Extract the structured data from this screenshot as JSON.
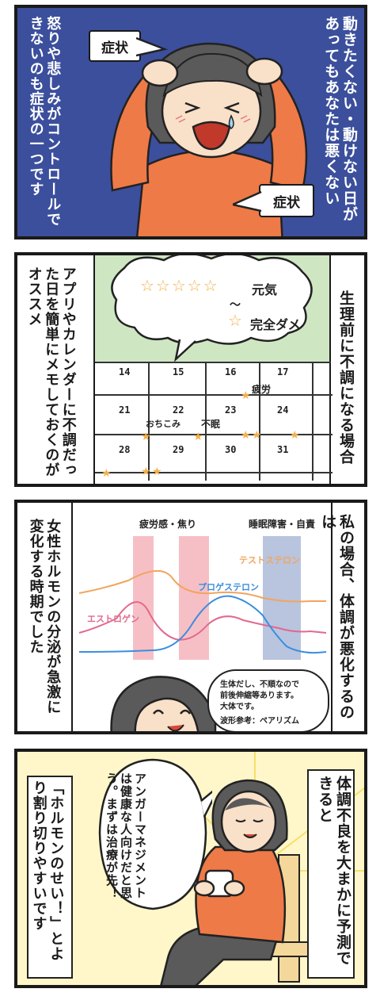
{
  "colors": {
    "panel1_bg": "#3b4f9c",
    "shirt": "#ee7a47",
    "hair": "#5a5a5a",
    "skin": "#f9e0c8",
    "calendar_header": "#cfe6c3",
    "pink_band": "#f6bfc6",
    "blue_band": "#b9c4de",
    "estrogen": "#e06a8e",
    "progesterone": "#3a8ede",
    "testosterone": "#f2a55d",
    "panel4_bg": "#fff7c9",
    "chair": "#f4d79a"
  },
  "panel1": {
    "right_text": "動きたくない・動けない日があってもあなたは悪くない",
    "left_text": "怒りや悲しみがコントロールできないのも症状の一つです",
    "bubble_top": "症状",
    "bubble_bottom": "症状"
  },
  "panel2": {
    "right_text": "生理前に不調になる場合",
    "left_text": "アプリやカレンダーに不調だった日を簡単にメモしておくのがオススメ",
    "thought_stars_label": "元気",
    "thought_tilde": "～",
    "thought_one_star_label": "完全ダメ",
    "dates": [
      "14",
      "15",
      "16",
      "17",
      "21",
      "22",
      "23",
      "24",
      "28",
      "29",
      "30",
      "31"
    ],
    "memo_fatigue": "疲労",
    "memo_down": "おちこみ",
    "memo_insomnia": "不眠"
  },
  "panel3": {
    "right_text": "私の場合、体調が悪化するのは",
    "left_text": "女性ホルモンの分泌が急激に変化する時期でした",
    "band_label_1": "疲労感・焦り",
    "band_label_2": "睡眠障害・自責",
    "series_testosterone": "テストステロン",
    "series_progesterone": "プロゲステロン",
    "series_estrogen": "エストロゲン",
    "note_line1": "生体だし、不順なので",
    "note_line2": "前後伸縮等あります。",
    "note_line3": "大体です。",
    "note_source": "波形参考：ペアリズム"
  },
  "panel4": {
    "right_text": "体調不良を大まかに予測できると",
    "left_text": "「ホルモンのせい！」とより割り切りやすいです",
    "speech": "アンガーマネジメントは健康な人向けだと思う。まずは治療が先！"
  }
}
